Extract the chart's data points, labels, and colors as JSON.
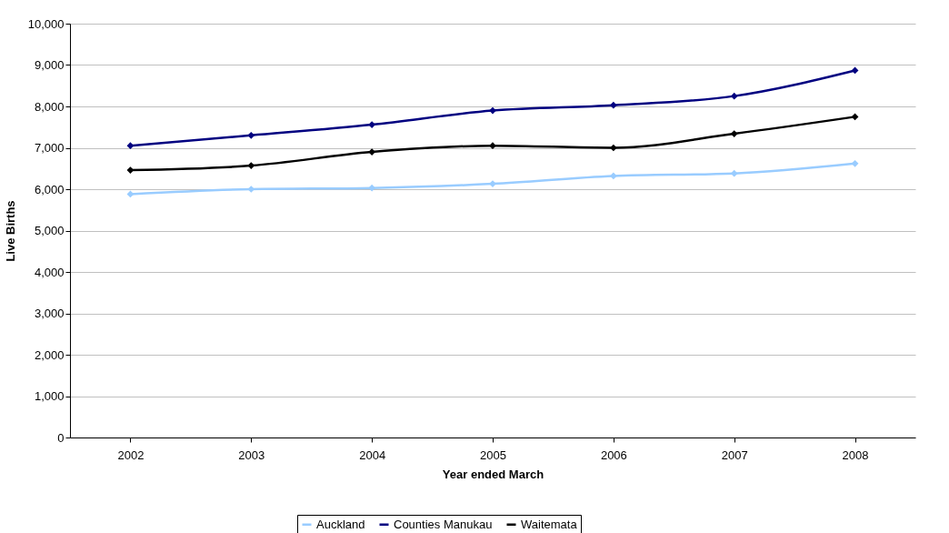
{
  "chart_data": {
    "type": "line",
    "xlabel": "Year ended March",
    "ylabel": "Live Births",
    "categories": [
      "2002",
      "2003",
      "2004",
      "2005",
      "2006",
      "2007",
      "2008"
    ],
    "series": [
      {
        "name": "Auckland",
        "color": "#99ccff",
        "values": [
          5880,
          6000,
          6030,
          6130,
          6320,
          6380,
          6620
        ]
      },
      {
        "name": "Counties Manukau",
        "color": "#000080",
        "values": [
          7050,
          7300,
          7560,
          7900,
          8030,
          8250,
          8870
        ]
      },
      {
        "name": "Waitemata",
        "color": "#000000",
        "values": [
          6460,
          6570,
          6900,
          7050,
          7000,
          7340,
          7750
        ]
      }
    ],
    "ylim": [
      0,
      10000
    ],
    "yticks": [
      0,
      {
        "value": 1000,
        "label": "1,000"
      },
      {
        "value": 2000,
        "label": "2,000"
      },
      {
        "value": 3000,
        "label": "3,000"
      },
      {
        "value": 4000,
        "label": "4,000"
      },
      {
        "value": 5000,
        "label": "5,000"
      },
      {
        "value": 6000,
        "label": "6,000"
      },
      {
        "value": 7000,
        "label": "7,000"
      },
      {
        "value": 8000,
        "label": "8,000"
      },
      {
        "value": 9000,
        "label": "9,000"
      },
      {
        "value": 10000,
        "label": "10,000"
      }
    ],
    "grid": "y",
    "legend": "bottom",
    "marker": "diamond",
    "line_style": "solid"
  }
}
